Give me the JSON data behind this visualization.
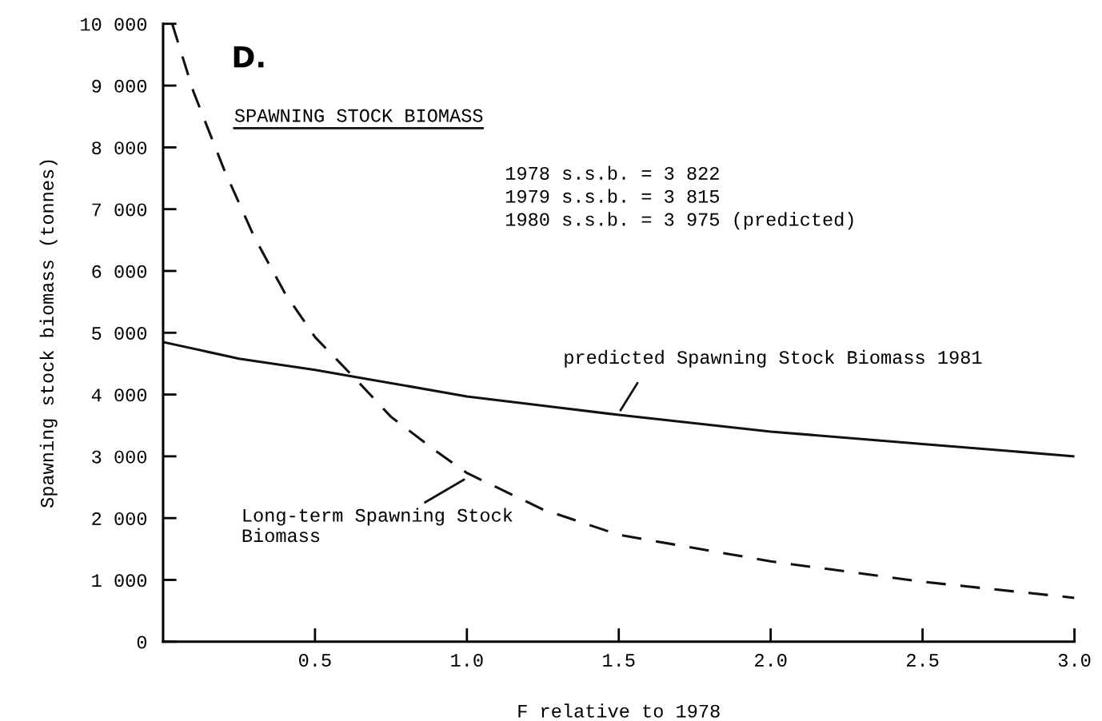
{
  "chart_data": {
    "type": "line",
    "title": "D.",
    "subtitle": "SPAWNING STOCK BIOMASS",
    "xlabel": "F relative to 1978",
    "ylabel": "Spawning stock biomass (tonnes)",
    "xlim": [
      0,
      3
    ],
    "ylim": [
      0,
      10000
    ],
    "xticks": [
      {
        "value": 0.5,
        "label": "0.5"
      },
      {
        "value": 1,
        "label": "1.0"
      },
      {
        "value": 1.5,
        "label": "1.5"
      },
      {
        "value": 2,
        "label": "2.0"
      },
      {
        "value": 2.5,
        "label": "2.5"
      },
      {
        "value": 3,
        "label": "3.0"
      }
    ],
    "yticks": [
      {
        "value": 0,
        "label": "0"
      },
      {
        "value": 1000,
        "label": "1 000"
      },
      {
        "value": 2000,
        "label": "2 000"
      },
      {
        "value": 3000,
        "label": "3 000"
      },
      {
        "value": 4000,
        "label": "4 000"
      },
      {
        "value": 5000,
        "label": "5 000"
      },
      {
        "value": 6000,
        "label": "6 000"
      },
      {
        "value": 7000,
        "label": "7 000"
      },
      {
        "value": 8000,
        "label": "8 000"
      },
      {
        "value": 9000,
        "label": "9 000"
      },
      {
        "value": 10000,
        "label": "10 000"
      }
    ],
    "grid": false,
    "legend": false,
    "series": [
      {
        "color": "#111111",
        "line_style": "solid",
        "x": [
          0,
          0.25,
          0.5,
          0.65,
          1.0,
          1.5,
          2.0,
          2.5,
          3.0
        ],
        "values": [
          4850,
          4580,
          4400,
          4270,
          3970,
          3670,
          3400,
          3200,
          3000
        ]
      },
      {
        "color": "#111111",
        "line_style": "dashed",
        "x": [
          0.03,
          0.1,
          0.2,
          0.3,
          0.4,
          0.5,
          0.63,
          0.75,
          0.9,
          1.0,
          1.25,
          1.5,
          2.0,
          2.5,
          3.0
        ],
        "values": [
          10000,
          8900,
          7650,
          6550,
          5650,
          4930,
          4270,
          3640,
          3080,
          2730,
          2140,
          1730,
          1300,
          970,
          710
        ]
      }
    ],
    "annotations": [
      "1978 s.s.b. = 3 822\n1979 s.s.b. = 3 815\n1980 s.s.b. = 3 975 (predicted)",
      {
        "text": "predicted Spawning Stock Biomass 1981",
        "x": 1.5,
        "y": 3700
      },
      {
        "text": "Long-term Spawning Stock\nBiomass",
        "x": 1.0,
        "y": 2650
      }
    ]
  }
}
